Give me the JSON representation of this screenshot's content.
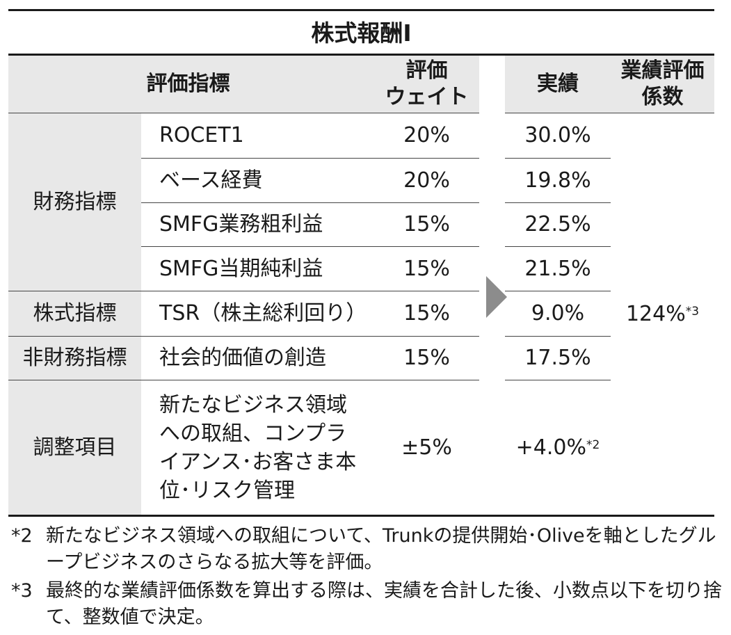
{
  "title": "株式報酬Ⅰ",
  "headers": {
    "indicator": "評価指標",
    "weight_line1": "評価",
    "weight_line2": "ウェイト",
    "result": "実績",
    "coef_line1": "業績評価",
    "coef_line2": "係数"
  },
  "groups": {
    "financial": "財務指標",
    "stock": "株式指標",
    "nonfinancial": "非財務指標",
    "adjustment": "調整項目"
  },
  "rows": [
    {
      "indicator": "ROCET1",
      "weight": "20%",
      "result": "30.0%"
    },
    {
      "indicator": "ベース経費",
      "weight": "20%",
      "result": "19.8%"
    },
    {
      "indicator": "SMFG業務粗利益",
      "weight": "15%",
      "result": "22.5%"
    },
    {
      "indicator": "SMFG当期純利益",
      "weight": "15%",
      "result": "21.5%"
    },
    {
      "indicator": "TSR（株主総利回り）",
      "weight": "15%",
      "result": "9.0%"
    },
    {
      "indicator": "社会的価値の創造",
      "weight": "15%",
      "result": "17.5%"
    }
  ],
  "adjustment": {
    "lines": [
      "新たなビジネス領域",
      "への取組、コンプラ",
      "イアンス･お客さま本",
      "位･リスク管理"
    ],
    "weight": "±5%",
    "result": "+4.0%",
    "result_note": "*2"
  },
  "coefficient": {
    "value": "124%",
    "note": "*3"
  },
  "footnotes": [
    {
      "mark": "*2",
      "text": "新たなビジネス領域への取組について、Trunkの提供開始･Oliveを軸としたグループビジネスのさらなる拡大等を評価。"
    },
    {
      "mark": "*3",
      "text": "最終的な業績評価係数を算出する際は、実績を合計した後、小数点以下を切り捨て、整数値で決定。"
    }
  ],
  "colors": {
    "header_shade": "#e8e8e8",
    "rule": "#1a1a1a",
    "arrow": "#8c8c8c"
  }
}
